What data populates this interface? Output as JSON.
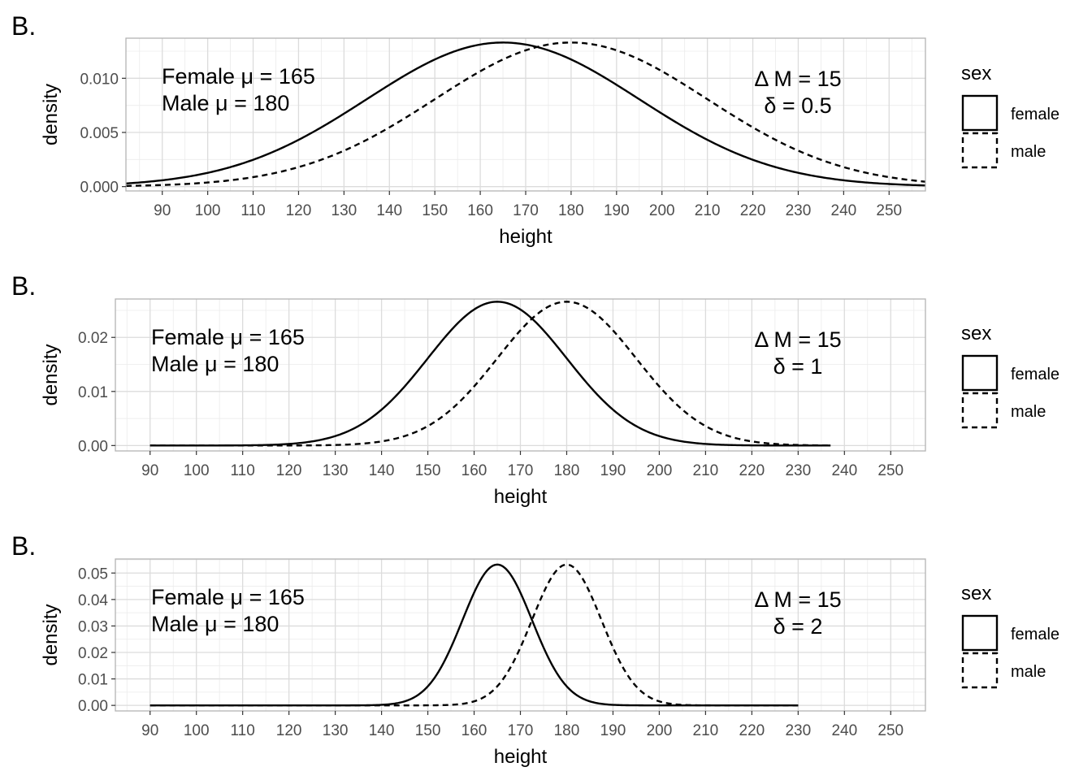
{
  "chart_data": [
    {
      "type": "line",
      "panel_tag": "B.",
      "xlabel": "height",
      "ylabel": "density",
      "xlim": [
        82,
        258
      ],
      "ylim": [
        -0.0004,
        0.0137
      ],
      "x_ticks": [
        90,
        100,
        110,
        120,
        130,
        140,
        150,
        160,
        170,
        180,
        190,
        200,
        210,
        220,
        230,
        240,
        250
      ],
      "x_tick_labels": [
        "90",
        "100",
        "110",
        "120",
        "130",
        "140",
        "150",
        "160",
        "170",
        "180",
        "190",
        "200",
        "210",
        "220",
        "230",
        "240",
        "250"
      ],
      "y_ticks": [
        0,
        0.005,
        0.01
      ],
      "y_tick_labels": [
        "0.000",
        "0.005",
        "0.010"
      ],
      "x_range": [
        82,
        258
      ],
      "series": [
        {
          "name": "female",
          "mean": 165,
          "sd": 30,
          "dash": "solid"
        },
        {
          "name": "male",
          "mean": 180,
          "sd": 30,
          "dash": "dashed"
        }
      ],
      "annotation_left": [
        "Female μ = 165",
        "Male μ = 180"
      ],
      "annotation_right": [
        "Δ M = 15",
        "δ = 0.5"
      ],
      "legend": {
        "title": "sex",
        "items": [
          "female",
          "male"
        ],
        "placement": "right"
      },
      "grid": true
    },
    {
      "type": "line",
      "panel_tag": "B.",
      "xlabel": "height",
      "ylabel": "density",
      "xlim": [
        82.5,
        257.5
      ],
      "ylim": [
        -0.001,
        0.0271
      ],
      "x_ticks": [
        90,
        100,
        110,
        120,
        130,
        140,
        150,
        160,
        170,
        180,
        190,
        200,
        210,
        220,
        230,
        240,
        250
      ],
      "x_tick_labels": [
        "90",
        "100",
        "110",
        "120",
        "130",
        "140",
        "150",
        "160",
        "170",
        "180",
        "190",
        "200",
        "210",
        "220",
        "230",
        "240",
        "250"
      ],
      "y_ticks": [
        0,
        0.01,
        0.02
      ],
      "y_tick_labels": [
        "0.00",
        "0.01",
        "0.02"
      ],
      "x_range": [
        90,
        237
      ],
      "series": [
        {
          "name": "female",
          "mean": 165,
          "sd": 15,
          "dash": "solid"
        },
        {
          "name": "male",
          "mean": 180,
          "sd": 15,
          "dash": "dashed"
        }
      ],
      "annotation_left": [
        "Female μ = 165",
        "Male μ = 180"
      ],
      "annotation_right": [
        "Δ M = 15",
        "δ = 1"
      ],
      "legend": {
        "title": "sex",
        "items": [
          "female",
          "male"
        ],
        "placement": "right"
      },
      "grid": true
    },
    {
      "type": "line",
      "panel_tag": "B.",
      "xlabel": "height",
      "ylabel": "density",
      "xlim": [
        82.5,
        257.5
      ],
      "ylim": [
        -0.0021,
        0.0553
      ],
      "x_ticks": [
        90,
        100,
        110,
        120,
        130,
        140,
        150,
        160,
        170,
        180,
        190,
        200,
        210,
        220,
        230,
        240,
        250
      ],
      "x_tick_labels": [
        "90",
        "100",
        "110",
        "120",
        "130",
        "140",
        "150",
        "160",
        "170",
        "180",
        "190",
        "200",
        "210",
        "220",
        "230",
        "240",
        "250"
      ],
      "y_ticks": [
        0,
        0.01,
        0.02,
        0.03,
        0.04,
        0.05
      ],
      "y_tick_labels": [
        "0.00",
        "0.01",
        "0.02",
        "0.03",
        "0.04",
        "0.05"
      ],
      "x_range": [
        90,
        230
      ],
      "series": [
        {
          "name": "female",
          "mean": 165,
          "sd": 7.5,
          "dash": "solid"
        },
        {
          "name": "male",
          "mean": 180,
          "sd": 7.5,
          "dash": "dashed"
        }
      ],
      "annotation_left": [
        "Female μ = 165",
        "Male μ = 180"
      ],
      "annotation_right": [
        "Δ M = 15",
        "δ = 2"
      ],
      "legend": {
        "title": "sex",
        "items": [
          "female",
          "male"
        ],
        "placement": "right"
      },
      "grid": true
    }
  ]
}
